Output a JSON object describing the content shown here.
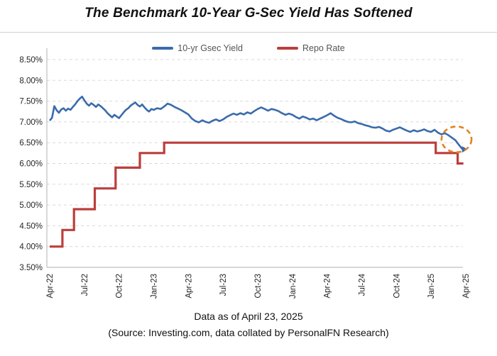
{
  "title": "The Benchmark 10-Year G-Sec Yield Has Softened",
  "footer": {
    "line1": "Data as of April 23, 2025",
    "line2": "(Source: Investing.com, data collated by PersonalFN Research)"
  },
  "legend": [
    {
      "label": "10-yr Gsec Yield",
      "color": "#3a6bab"
    },
    {
      "label": "Repo Rate",
      "color": "#bb3e3c"
    }
  ],
  "colors": {
    "gsec_line": "#3a6bab",
    "repo_line": "#bb3e3c",
    "annotation_circle": "#e2831f",
    "gridline": "#d9d9d9",
    "axis_line": "#bfbfbf",
    "tick_text": "#262626"
  },
  "chart_data": {
    "type": "line",
    "title": "The Benchmark 10-Year G-Sec Yield Has Softened",
    "x_unit": "months since Apr-2022",
    "ylim": [
      3.5,
      8.5
    ],
    "y_tick_labels": [
      "8.50%",
      "8.00%",
      "7.50%",
      "7.00%",
      "6.50%",
      "6.00%",
      "5.50%",
      "5.00%",
      "4.50%",
      "4.00%",
      "3.50%"
    ],
    "y_tick_values": [
      8.5,
      8.0,
      7.5,
      7.0,
      6.5,
      6.0,
      5.5,
      5.0,
      4.5,
      4.0,
      3.5
    ],
    "x_ticks": [
      {
        "label": "Apr-22",
        "month": 0
      },
      {
        "label": "Jul-22",
        "month": 3
      },
      {
        "label": "Oct-22",
        "month": 6
      },
      {
        "label": "Jan-23",
        "month": 9
      },
      {
        "label": "Apr-23",
        "month": 12
      },
      {
        "label": "Jul-23",
        "month": 15
      },
      {
        "label": "Oct-23",
        "month": 18
      },
      {
        "label": "Jan-24",
        "month": 21
      },
      {
        "label": "Apr-24",
        "month": 24
      },
      {
        "label": "Jul-24",
        "month": 27
      },
      {
        "label": "Oct-24",
        "month": 30
      },
      {
        "label": "Jan-25",
        "month": 33
      },
      {
        "label": "Apr-25",
        "month": 36
      }
    ],
    "grid": "horizontal-dashed",
    "legend_position": "top-center",
    "series": [
      {
        "name": "10-yr Gsec Yield",
        "color": "#3a6bab",
        "style": "line",
        "end_arrow": true,
        "points": [
          [
            0,
            7.03
          ],
          [
            0.2,
            7.1
          ],
          [
            0.4,
            7.38
          ],
          [
            0.6,
            7.28
          ],
          [
            0.8,
            7.22
          ],
          [
            1.0,
            7.3
          ],
          [
            1.2,
            7.33
          ],
          [
            1.4,
            7.27
          ],
          [
            1.6,
            7.32
          ],
          [
            1.8,
            7.29
          ],
          [
            2.0,
            7.36
          ],
          [
            2.2,
            7.42
          ],
          [
            2.4,
            7.5
          ],
          [
            2.6,
            7.56
          ],
          [
            2.8,
            7.61
          ],
          [
            3.0,
            7.52
          ],
          [
            3.2,
            7.44
          ],
          [
            3.4,
            7.39
          ],
          [
            3.6,
            7.45
          ],
          [
            3.8,
            7.41
          ],
          [
            4.0,
            7.36
          ],
          [
            4.2,
            7.42
          ],
          [
            4.4,
            7.38
          ],
          [
            4.6,
            7.33
          ],
          [
            4.8,
            7.28
          ],
          [
            5.0,
            7.21
          ],
          [
            5.2,
            7.16
          ],
          [
            5.4,
            7.11
          ],
          [
            5.6,
            7.17
          ],
          [
            5.8,
            7.13
          ],
          [
            6.0,
            7.09
          ],
          [
            6.2,
            7.16
          ],
          [
            6.4,
            7.23
          ],
          [
            6.6,
            7.29
          ],
          [
            6.8,
            7.33
          ],
          [
            7.0,
            7.39
          ],
          [
            7.2,
            7.43
          ],
          [
            7.4,
            7.47
          ],
          [
            7.6,
            7.41
          ],
          [
            7.8,
            7.37
          ],
          [
            8.0,
            7.42
          ],
          [
            8.2,
            7.35
          ],
          [
            8.4,
            7.29
          ],
          [
            8.6,
            7.25
          ],
          [
            8.8,
            7.31
          ],
          [
            9.0,
            7.29
          ],
          [
            9.3,
            7.33
          ],
          [
            9.6,
            7.31
          ],
          [
            9.9,
            7.37
          ],
          [
            10.2,
            7.44
          ],
          [
            10.5,
            7.41
          ],
          [
            10.8,
            7.36
          ],
          [
            11.1,
            7.32
          ],
          [
            11.4,
            7.28
          ],
          [
            11.7,
            7.23
          ],
          [
            12.0,
            7.18
          ],
          [
            12.3,
            7.08
          ],
          [
            12.6,
            7.02
          ],
          [
            12.9,
            6.99
          ],
          [
            13.2,
            7.04
          ],
          [
            13.5,
            7.0
          ],
          [
            13.8,
            6.98
          ],
          [
            14.1,
            7.03
          ],
          [
            14.4,
            7.06
          ],
          [
            14.7,
            7.02
          ],
          [
            15.0,
            7.06
          ],
          [
            15.3,
            7.12
          ],
          [
            15.6,
            7.16
          ],
          [
            15.9,
            7.2
          ],
          [
            16.2,
            7.17
          ],
          [
            16.5,
            7.21
          ],
          [
            16.8,
            7.18
          ],
          [
            17.1,
            7.23
          ],
          [
            17.4,
            7.2
          ],
          [
            17.7,
            7.26
          ],
          [
            18.0,
            7.31
          ],
          [
            18.3,
            7.35
          ],
          [
            18.6,
            7.31
          ],
          [
            18.9,
            7.27
          ],
          [
            19.2,
            7.31
          ],
          [
            19.5,
            7.29
          ],
          [
            19.8,
            7.26
          ],
          [
            20.1,
            7.21
          ],
          [
            20.4,
            7.17
          ],
          [
            20.7,
            7.2
          ],
          [
            21.0,
            7.17
          ],
          [
            21.3,
            7.12
          ],
          [
            21.6,
            7.08
          ],
          [
            21.9,
            7.13
          ],
          [
            22.2,
            7.1
          ],
          [
            22.5,
            7.06
          ],
          [
            22.8,
            7.08
          ],
          [
            23.1,
            7.04
          ],
          [
            23.4,
            7.08
          ],
          [
            23.7,
            7.12
          ],
          [
            24.0,
            7.16
          ],
          [
            24.3,
            7.21
          ],
          [
            24.6,
            7.15
          ],
          [
            24.9,
            7.1
          ],
          [
            25.2,
            7.07
          ],
          [
            25.5,
            7.03
          ],
          [
            25.8,
            7.0
          ],
          [
            26.1,
            6.99
          ],
          [
            26.4,
            7.01
          ],
          [
            26.7,
            6.97
          ],
          [
            27.0,
            6.95
          ],
          [
            27.3,
            6.92
          ],
          [
            27.6,
            6.9
          ],
          [
            27.9,
            6.87
          ],
          [
            28.2,
            6.86
          ],
          [
            28.5,
            6.88
          ],
          [
            28.8,
            6.84
          ],
          [
            29.1,
            6.79
          ],
          [
            29.4,
            6.77
          ],
          [
            29.7,
            6.81
          ],
          [
            30.0,
            6.84
          ],
          [
            30.3,
            6.87
          ],
          [
            30.6,
            6.83
          ],
          [
            30.9,
            6.79
          ],
          [
            31.2,
            6.76
          ],
          [
            31.5,
            6.8
          ],
          [
            31.8,
            6.77
          ],
          [
            32.1,
            6.79
          ],
          [
            32.4,
            6.82
          ],
          [
            32.7,
            6.78
          ],
          [
            33.0,
            6.76
          ],
          [
            33.3,
            6.81
          ],
          [
            33.6,
            6.74
          ],
          [
            33.9,
            6.7
          ],
          [
            34.2,
            6.73
          ],
          [
            34.5,
            6.68
          ],
          [
            34.8,
            6.62
          ],
          [
            35.1,
            6.56
          ],
          [
            35.4,
            6.45
          ],
          [
            35.6,
            6.38
          ],
          [
            35.8,
            6.32
          ]
        ]
      },
      {
        "name": "Repo Rate",
        "color": "#bb3e3c",
        "style": "step",
        "end_month": 35.8,
        "points": [
          [
            0,
            4.0
          ],
          [
            1.1,
            4.4
          ],
          [
            2.1,
            4.9
          ],
          [
            3.9,
            5.4
          ],
          [
            5.7,
            5.9
          ],
          [
            7.8,
            6.25
          ],
          [
            9.9,
            6.5
          ],
          [
            33.4,
            6.25
          ],
          [
            35.3,
            6.0
          ]
        ]
      }
    ],
    "annotation": {
      "type": "dashed-circle",
      "color": "#e2831f",
      "center_month": 35.2,
      "center_value": 6.58,
      "rx_months": 1.3,
      "ry_percent": 0.31
    }
  }
}
